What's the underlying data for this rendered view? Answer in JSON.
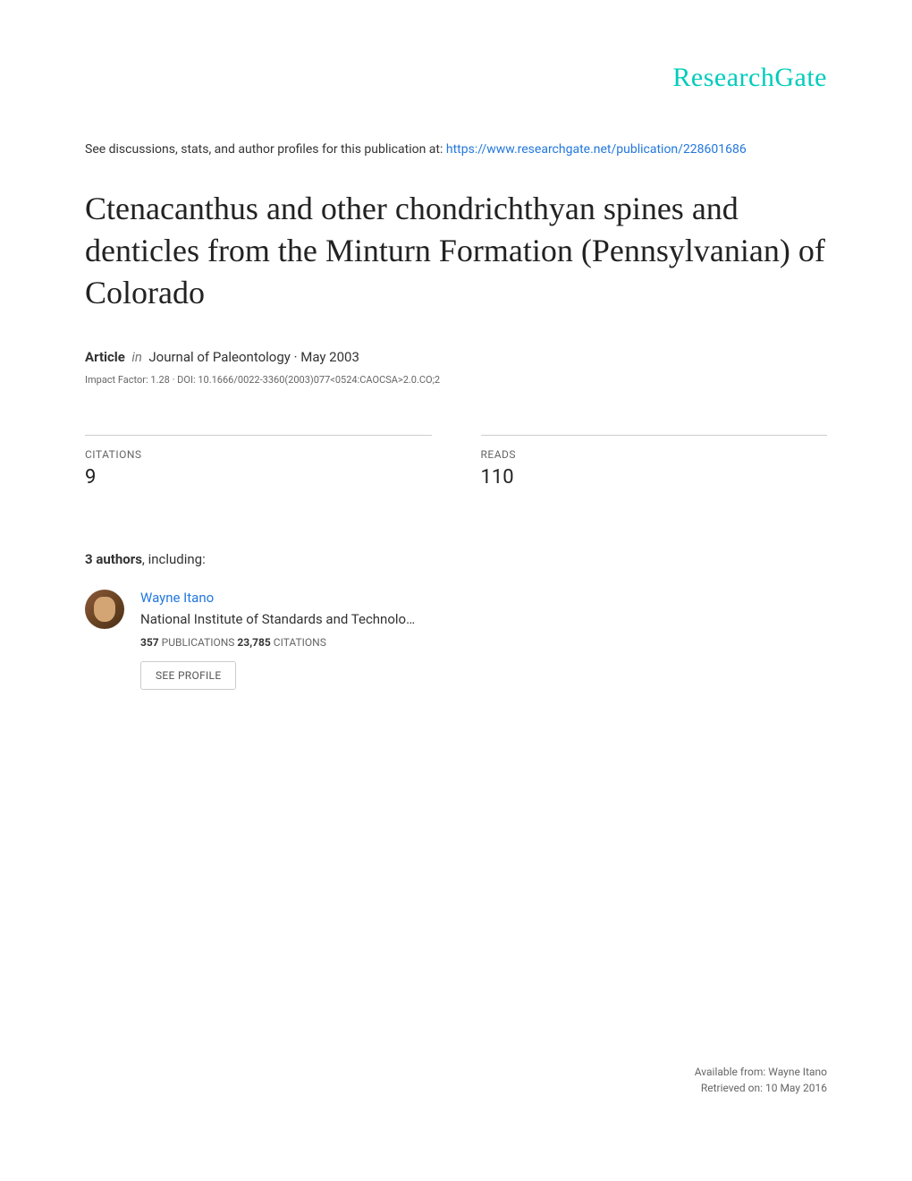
{
  "logo": {
    "text": "ResearchGate",
    "color": "#00ccbb"
  },
  "intro": {
    "prefix": "See discussions, stats, and author profiles for this publication at: ",
    "link_text": "https://www.researchgate.net/publication/228601686",
    "link_color": "#2277dd"
  },
  "title": "Ctenacanthus and other chondrichthyan spines and denticles from the Minturn Formation (Pennsylvanian) of Colorado",
  "article_meta": {
    "label": "Article",
    "in": "in",
    "journal": "Journal of Paleontology · May 2003"
  },
  "impact_line": "Impact Factor: 1.28 · DOI: 10.1666/0022-3360(2003)077<0524:CAOCSA>2.0.CO;2",
  "stats": {
    "citations": {
      "label": "CITATIONS",
      "value": "9"
    },
    "reads": {
      "label": "READS",
      "value": "110"
    }
  },
  "authors_heading": {
    "count": "3 authors",
    "suffix": ", including:"
  },
  "author": {
    "name": "Wayne Itano",
    "affiliation": "National Institute of Standards and Technolo…",
    "publications_count": "357",
    "publications_label": " PUBLICATIONS   ",
    "citations_count": "23,785",
    "citations_label": " CITATIONS",
    "see_profile": "SEE PROFILE"
  },
  "footer": {
    "line1": "Available from: Wayne Itano",
    "line2": "Retrieved on: 10 May 2016"
  },
  "colors": {
    "background": "#ffffff",
    "text_primary": "#333333",
    "text_secondary": "#666666",
    "link": "#2277dd",
    "border": "#cccccc"
  }
}
